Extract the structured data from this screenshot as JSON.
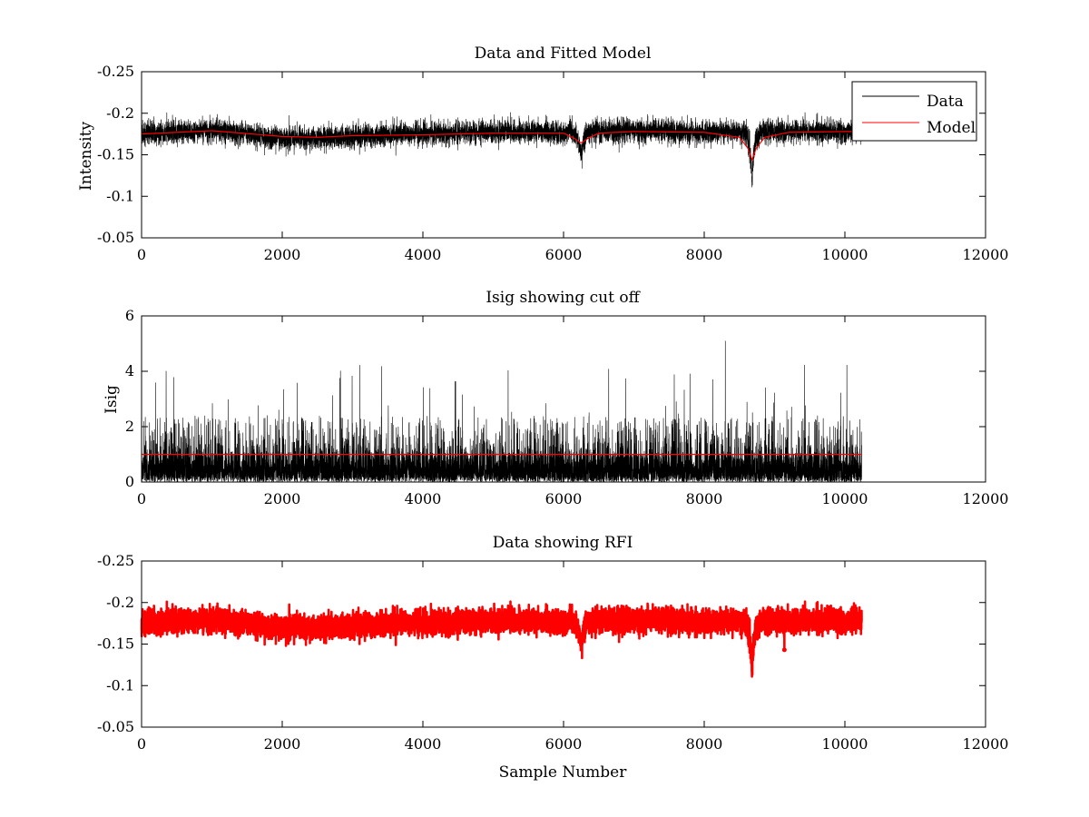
{
  "figure": {
    "background": "#ffffff",
    "sample_count": 10240
  },
  "chart_data": [
    {
      "type": "line",
      "title": "Data and Fitted Model",
      "xlabel": "",
      "ylabel": "Intensity",
      "xlim": [
        0,
        12000
      ],
      "ylim": [
        -0.25,
        -0.05
      ],
      "y_axis_reversed": true,
      "xticks": [
        0,
        2000,
        4000,
        6000,
        8000,
        10000,
        12000
      ],
      "yticks": [
        -0.05,
        -0.1,
        -0.15,
        -0.2,
        -0.25
      ],
      "ytick_labels": [
        "-0.05",
        "-0.1",
        "-0.15",
        "-0.2",
        "-0.25"
      ],
      "grid": false,
      "legend": {
        "placement": "top-right",
        "entries": [
          "Data",
          "Model"
        ]
      },
      "series": [
        {
          "name": "Data",
          "color": "#000000",
          "style": "line",
          "x_range": [
            0,
            10240
          ],
          "baseline": [
            [
              0,
              -0.175
            ],
            [
              1000,
              -0.18
            ],
            [
              2000,
              -0.17
            ],
            [
              3000,
              -0.172
            ],
            [
              4000,
              -0.175
            ],
            [
              5000,
              -0.178
            ],
            [
              6000,
              -0.177
            ],
            [
              7000,
              -0.18
            ],
            [
              8000,
              -0.177
            ],
            [
              9000,
              -0.178
            ],
            [
              10240,
              -0.178
            ]
          ],
          "noise_range": [
            -0.215,
            -0.155
          ],
          "peaks": [
            {
              "x": 6250,
              "y": -0.155
            },
            {
              "x": 8680,
              "y": -0.13
            }
          ]
        },
        {
          "name": "Model",
          "color": "#ff0000",
          "style": "line",
          "points": [
            [
              0,
              -0.175
            ],
            [
              1000,
              -0.179
            ],
            [
              2000,
              -0.172
            ],
            [
              2500,
              -0.171
            ],
            [
              3000,
              -0.173
            ],
            [
              4000,
              -0.174
            ],
            [
              5000,
              -0.176
            ],
            [
              6000,
              -0.176
            ],
            [
              6150,
              -0.17
            ],
            [
              6250,
              -0.164
            ],
            [
              6350,
              -0.17
            ],
            [
              6500,
              -0.176
            ],
            [
              7000,
              -0.178
            ],
            [
              8000,
              -0.177
            ],
            [
              8500,
              -0.171
            ],
            [
              8620,
              -0.158
            ],
            [
              8680,
              -0.144
            ],
            [
              8740,
              -0.158
            ],
            [
              8860,
              -0.171
            ],
            [
              9200,
              -0.177
            ],
            [
              10000,
              -0.178
            ],
            [
              10240,
              -0.178
            ]
          ]
        }
      ]
    },
    {
      "type": "line",
      "title": "Isig showing cut off",
      "xlabel": "",
      "ylabel": "Isig",
      "xlim": [
        0,
        12000
      ],
      "ylim": [
        0,
        6
      ],
      "xticks": [
        0,
        2000,
        4000,
        6000,
        8000,
        10000,
        12000
      ],
      "yticks": [
        0,
        2,
        4,
        6
      ],
      "grid": false,
      "series": [
        {
          "color": "#000000",
          "style": "line",
          "x_range": [
            0,
            10240
          ],
          "dense_band": [
            0.05,
            1.6
          ],
          "spike_max": 4.3,
          "largest_spike": {
            "x": 8300,
            "y": 5.1
          }
        },
        {
          "color": "#ff0000",
          "style": "line",
          "points": [
            [
              0,
              1.0
            ],
            [
              10240,
              1.0
            ]
          ]
        }
      ]
    },
    {
      "type": "scatter",
      "title": "Data showing RFI",
      "xlabel": "Sample Number",
      "ylabel": "",
      "xlim": [
        0,
        12000
      ],
      "ylim": [
        -0.25,
        -0.05
      ],
      "y_axis_reversed": true,
      "xticks": [
        0,
        2000,
        4000,
        6000,
        8000,
        10000,
        12000
      ],
      "yticks": [
        -0.05,
        -0.1,
        -0.15,
        -0.2,
        -0.25
      ],
      "ytick_labels": [
        "-0.05",
        "-0.1",
        "-0.15",
        "-0.2",
        "-0.25"
      ],
      "grid": false,
      "series": [
        {
          "color": "#ff0000",
          "style": "line-with-dot-markers",
          "x_range": [
            0,
            10240
          ],
          "noise_range": [
            -0.215,
            -0.155
          ],
          "peaks": [
            {
              "x": 8680,
              "y": -0.13
            },
            {
              "x": 9140,
              "y": -0.143
            }
          ]
        }
      ]
    }
  ]
}
